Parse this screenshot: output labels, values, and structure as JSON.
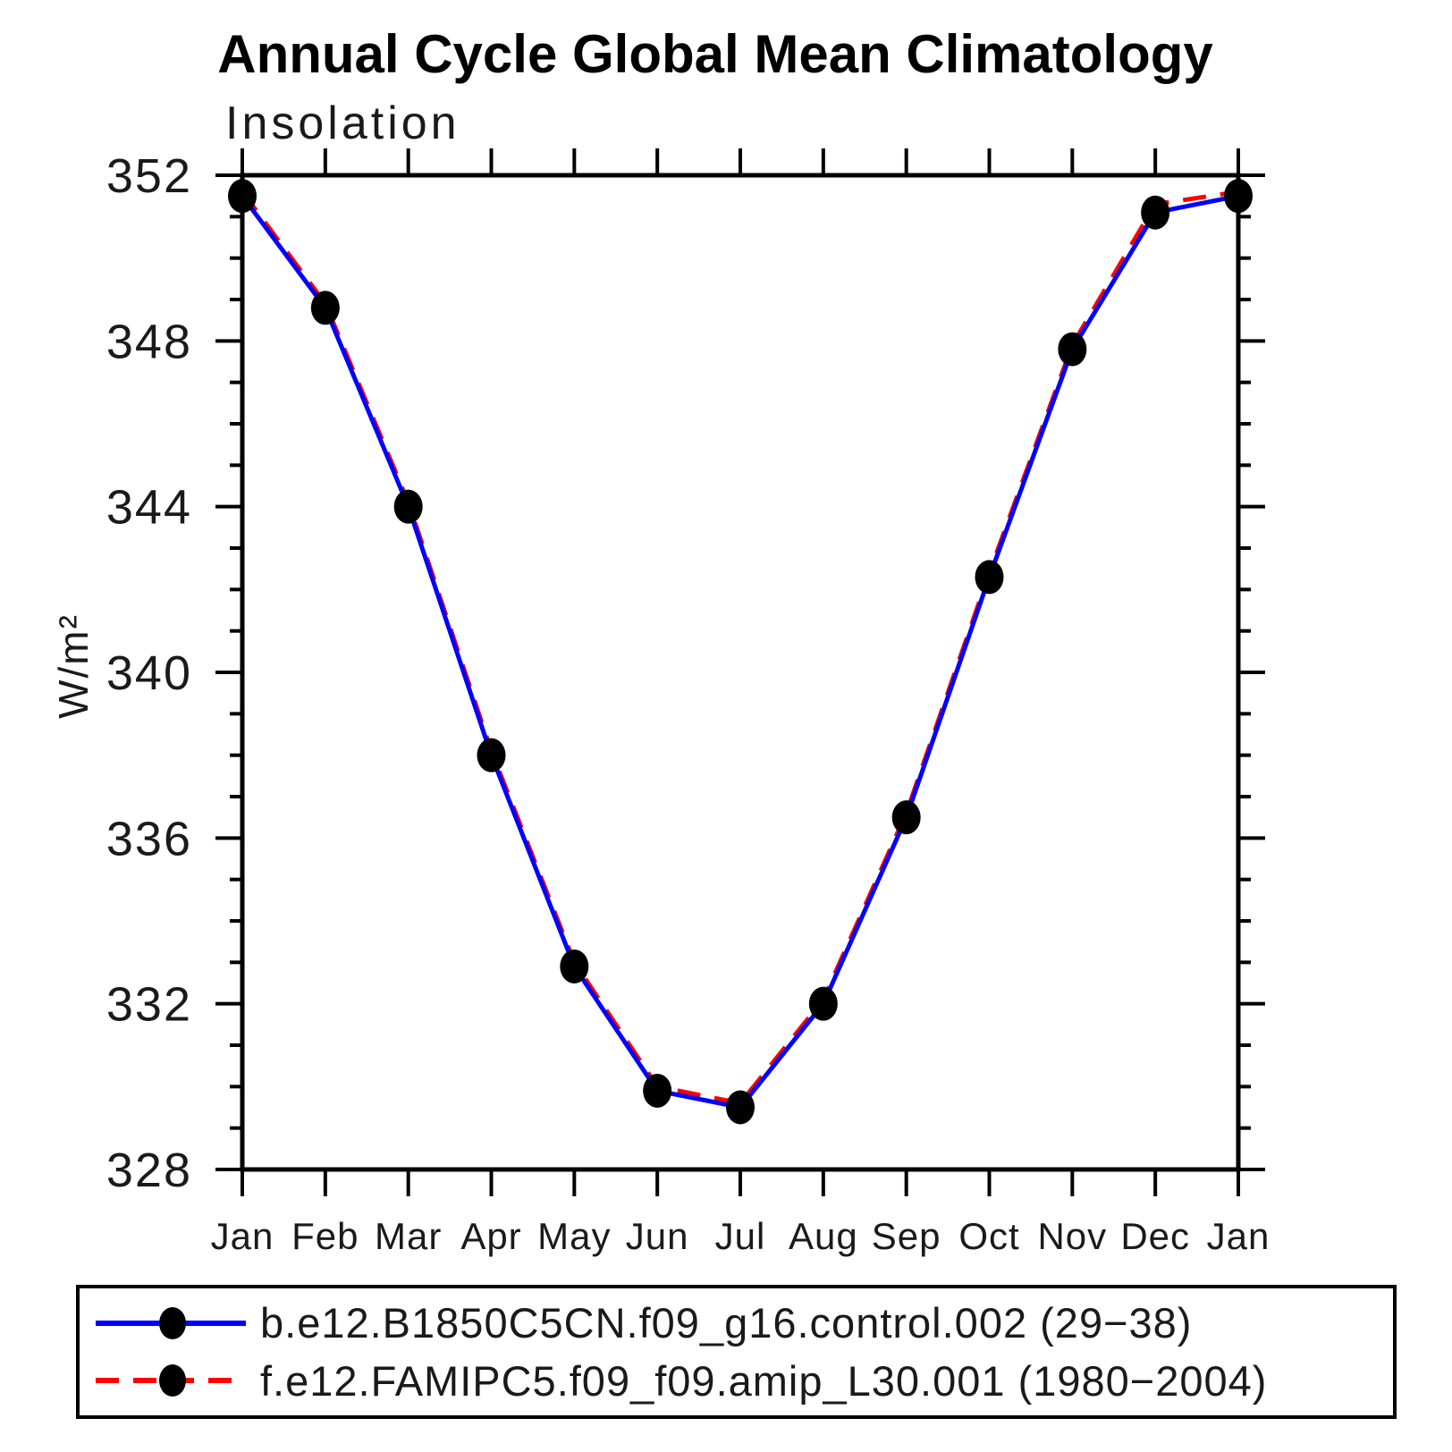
{
  "title": "Annual Cycle Global Mean Climatology",
  "chart_data": {
    "type": "line",
    "title": "Annual Cycle Global Mean Climatology",
    "subtitle": "Insolation",
    "xlabel": "",
    "ylabel": "W/m²",
    "ylim": [
      328,
      352
    ],
    "y_major_ticks": [
      352,
      348,
      344,
      340,
      336,
      332,
      328
    ],
    "y_minor_step": 1,
    "x_tick_labels": [
      "Jan",
      "Feb",
      "Mar",
      "Apr",
      "May",
      "Jun",
      "Jul",
      "Aug",
      "Sep",
      "Oct",
      "Nov",
      "Dec",
      "Jan"
    ],
    "grid": false,
    "legend_position": "bottom",
    "series": [
      {
        "name": "b.e12.B1850C5CN.f09_g16.control.002 (29−38)",
        "color": "#0000ff",
        "line_style": "solid",
        "marker": "filled-circle",
        "marker_color": "#000000",
        "values": [
          351.5,
          348.8,
          344.0,
          338.0,
          332.9,
          329.9,
          329.5,
          332.0,
          336.5,
          342.3,
          347.8,
          351.1,
          351.5
        ]
      },
      {
        "name": "f.e12.FAMIPC5.f09_f09.amip_L30.001 (1980−2004)",
        "color": "#ff0000",
        "line_style": "dashed",
        "marker": "filled-circle",
        "marker_color": "#000000",
        "values": [
          351.6,
          348.9,
          344.1,
          338.1,
          333.0,
          330.0,
          329.6,
          332.1,
          336.6,
          342.4,
          347.9,
          351.3,
          351.6
        ]
      }
    ]
  }
}
